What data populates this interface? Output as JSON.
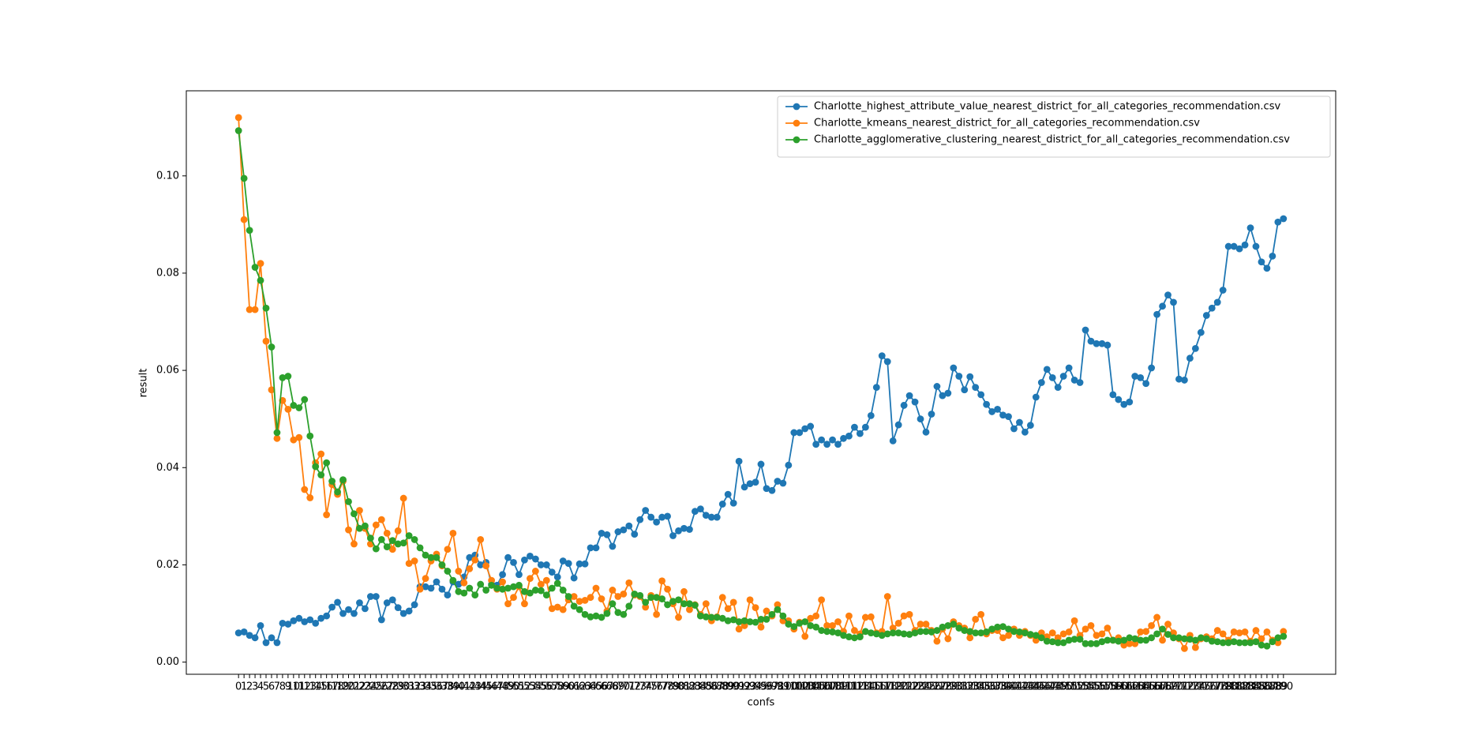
{
  "chart_data": {
    "type": "line",
    "xlabel": "confs",
    "ylabel": "result",
    "categories": [
      "0",
      "1",
      "2",
      "3",
      "4",
      "5",
      "6",
      "7",
      "8",
      "9",
      "10",
      "11",
      "12",
      "13",
      "14",
      "15",
      "16",
      "17",
      "18",
      "19",
      "20",
      "21",
      "22",
      "23",
      "24",
      "25",
      "26",
      "27",
      "28",
      "29",
      "30",
      "31",
      "32",
      "33",
      "34",
      "35",
      "36",
      "37",
      "38",
      "39",
      "40",
      "41",
      "42",
      "43",
      "44",
      "45",
      "46",
      "47",
      "48",
      "49",
      "50",
      "51",
      "52",
      "53",
      "54",
      "55",
      "56",
      "57",
      "58",
      "59",
      "60",
      "61",
      "62",
      "63",
      "64",
      "65",
      "66",
      "67",
      "68",
      "69",
      "70",
      "71",
      "72",
      "73",
      "74",
      "75",
      "76",
      "77",
      "78",
      "79",
      "80",
      "81",
      "82",
      "83",
      "84",
      "85",
      "86",
      "87",
      "88",
      "89",
      "90",
      "91",
      "92",
      "93",
      "94",
      "95",
      "96",
      "97",
      "98",
      "99",
      "100",
      "101",
      "102",
      "103",
      "104",
      "105",
      "106",
      "107",
      "108",
      "109",
      "110",
      "111",
      "112",
      "113",
      "114",
      "115",
      "116",
      "117",
      "118",
      "119",
      "120",
      "121",
      "122",
      "123",
      "124",
      "125",
      "126",
      "127",
      "128",
      "129",
      "130",
      "131",
      "132",
      "133",
      "134",
      "135",
      "136",
      "137",
      "138",
      "139",
      "140",
      "141",
      "142",
      "143",
      "144",
      "145",
      "146",
      "147",
      "148",
      "149",
      "150",
      "151",
      "152",
      "153",
      "154",
      "155",
      "156",
      "157",
      "158",
      "159",
      "160",
      "161",
      "162",
      "163",
      "164",
      "165",
      "166",
      "167",
      "168",
      "169",
      "170",
      "171",
      "172",
      "173",
      "174",
      "175",
      "176",
      "177",
      "178",
      "179",
      "180",
      "181",
      "182",
      "183",
      "184",
      "185",
      "186",
      "187",
      "188",
      "189",
      "190"
    ],
    "series": [
      {
        "name": "Charlotte_highest_attribute_value_nearest_district_for_all_categories_recommendation.csv",
        "color": "#1f77b4",
        "values": [
          0.006,
          0.0062,
          0.0055,
          0.005,
          0.0075,
          0.004,
          0.005,
          0.004,
          0.008,
          0.0078,
          0.0085,
          0.009,
          0.0083,
          0.0087,
          0.008,
          0.009,
          0.0095,
          0.0113,
          0.0123,
          0.01,
          0.0108,
          0.01,
          0.0122,
          0.011,
          0.0135,
          0.0135,
          0.0087,
          0.0122,
          0.0128,
          0.0112,
          0.01,
          0.0105,
          0.0118,
          0.0155,
          0.0155,
          0.0152,
          0.0165,
          0.015,
          0.0138,
          0.0165,
          0.016,
          0.0175,
          0.0215,
          0.022,
          0.02,
          0.0205,
          0.016,
          0.0158,
          0.018,
          0.0215,
          0.0205,
          0.018,
          0.021,
          0.0218,
          0.0212,
          0.02,
          0.02,
          0.0185,
          0.0175,
          0.0208,
          0.0203,
          0.0173,
          0.0202,
          0.0202,
          0.0235,
          0.0235,
          0.0265,
          0.0262,
          0.0238,
          0.0268,
          0.0272,
          0.028,
          0.0263,
          0.0293,
          0.0312,
          0.0298,
          0.0288,
          0.0298,
          0.03,
          0.026,
          0.027,
          0.0275,
          0.0273,
          0.031,
          0.0315,
          0.0302,
          0.0298,
          0.0298,
          0.0325,
          0.0345,
          0.0327,
          0.0413,
          0.036,
          0.0367,
          0.037,
          0.0407,
          0.0357,
          0.0353,
          0.0372,
          0.0368,
          0.0405,
          0.0472,
          0.0472,
          0.048,
          0.0485,
          0.0448,
          0.0457,
          0.0448,
          0.0457,
          0.0448,
          0.046,
          0.0465,
          0.0483,
          0.047,
          0.0483,
          0.0507,
          0.0565,
          0.063,
          0.0618,
          0.0455,
          0.0488,
          0.0528,
          0.0548,
          0.0535,
          0.05,
          0.0473,
          0.051,
          0.0567,
          0.0548,
          0.0553,
          0.0605,
          0.0588,
          0.056,
          0.0587,
          0.0565,
          0.055,
          0.053,
          0.0515,
          0.052,
          0.0508,
          0.0505,
          0.048,
          0.0493,
          0.0473,
          0.0487,
          0.0545,
          0.0575,
          0.0602,
          0.0585,
          0.0565,
          0.0588,
          0.0605,
          0.058,
          0.0575,
          0.0683,
          0.066,
          0.0655,
          0.0655,
          0.0652,
          0.055,
          0.054,
          0.053,
          0.0535,
          0.0588,
          0.0585,
          0.0573,
          0.0605,
          0.0715,
          0.0732,
          0.0755,
          0.074,
          0.0582,
          0.058,
          0.0625,
          0.0645,
          0.0678,
          0.0713,
          0.0728,
          0.074,
          0.0765,
          0.0855,
          0.0855,
          0.085,
          0.0858,
          0.0893,
          0.0855,
          0.0823,
          0.081,
          0.0835,
          0.0905,
          0.0912
        ]
      },
      {
        "name": "Charlotte_kmeans_nearest_district_for_all_categories_recommendation.csv",
        "color": "#ff7f0e",
        "values": [
          0.112,
          0.091,
          0.0725,
          0.0725,
          0.082,
          0.066,
          0.056,
          0.046,
          0.0538,
          0.052,
          0.0457,
          0.0462,
          0.0355,
          0.0338,
          0.041,
          0.0428,
          0.0303,
          0.0365,
          0.0345,
          0.0372,
          0.0272,
          0.0243,
          0.0312,
          0.0275,
          0.0243,
          0.0282,
          0.0293,
          0.0265,
          0.0232,
          0.027,
          0.0337,
          0.0203,
          0.0208,
          0.015,
          0.0172,
          0.0208,
          0.0222,
          0.0198,
          0.0232,
          0.0265,
          0.0187,
          0.0163,
          0.0192,
          0.021,
          0.0252,
          0.0198,
          0.0168,
          0.015,
          0.0165,
          0.012,
          0.0133,
          0.0155,
          0.012,
          0.0172,
          0.0187,
          0.016,
          0.0168,
          0.011,
          0.0113,
          0.0108,
          0.0128,
          0.0135,
          0.0125,
          0.0127,
          0.0133,
          0.0152,
          0.013,
          0.0105,
          0.0148,
          0.0135,
          0.014,
          0.0163,
          0.0138,
          0.0135,
          0.0113,
          0.0137,
          0.0098,
          0.0167,
          0.015,
          0.012,
          0.0092,
          0.0145,
          0.0108,
          0.0118,
          0.0098,
          0.012,
          0.0085,
          0.0093,
          0.0133,
          0.011,
          0.0123,
          0.0068,
          0.0075,
          0.0128,
          0.0112,
          0.0072,
          0.0105,
          0.0095,
          0.0118,
          0.0085,
          0.0085,
          0.0068,
          0.0082,
          0.0053,
          0.009,
          0.0095,
          0.0128,
          0.0075,
          0.0075,
          0.0083,
          0.0063,
          0.0095,
          0.0065,
          0.0058,
          0.0092,
          0.0093,
          0.006,
          0.0063,
          0.0135,
          0.007,
          0.008,
          0.0095,
          0.0098,
          0.0065,
          0.0078,
          0.0078,
          0.0065,
          0.0043,
          0.0068,
          0.0048,
          0.0083,
          0.0075,
          0.007,
          0.005,
          0.0088,
          0.0098,
          0.0058,
          0.0065,
          0.0065,
          0.005,
          0.0055,
          0.0068,
          0.0055,
          0.0063,
          0.0055,
          0.0045,
          0.006,
          0.0052,
          0.006,
          0.005,
          0.0058,
          0.0062,
          0.0085,
          0.0055,
          0.0068,
          0.0075,
          0.0055,
          0.0058,
          0.007,
          0.0045,
          0.005,
          0.0035,
          0.0038,
          0.0038,
          0.0062,
          0.0063,
          0.0075,
          0.0092,
          0.0045,
          0.0078,
          0.006,
          0.0048,
          0.0028,
          0.0055,
          0.003,
          0.0048,
          0.0052,
          0.0048,
          0.0065,
          0.0058,
          0.0045,
          0.0062,
          0.006,
          0.0062,
          0.0043,
          0.0065,
          0.0048,
          0.0062,
          0.0045,
          0.004,
          0.0063
        ]
      },
      {
        "name": "Charlotte_agglomerative_clustering_nearest_district_for_all_categories_recommendation.csv",
        "color": "#2ca02c",
        "values": [
          0.1093,
          0.0995,
          0.0888,
          0.0812,
          0.0785,
          0.0728,
          0.0648,
          0.0472,
          0.0585,
          0.0588,
          0.0528,
          0.0523,
          0.054,
          0.0465,
          0.0402,
          0.0385,
          0.041,
          0.0372,
          0.035,
          0.0375,
          0.033,
          0.0305,
          0.0275,
          0.028,
          0.0255,
          0.0233,
          0.0252,
          0.0237,
          0.025,
          0.0243,
          0.0245,
          0.026,
          0.0252,
          0.0235,
          0.022,
          0.0215,
          0.0215,
          0.02,
          0.0187,
          0.0168,
          0.0145,
          0.0142,
          0.0152,
          0.0138,
          0.016,
          0.0148,
          0.0158,
          0.0152,
          0.015,
          0.0152,
          0.0155,
          0.0158,
          0.0145,
          0.0142,
          0.0148,
          0.0147,
          0.0138,
          0.0152,
          0.0162,
          0.0148,
          0.0135,
          0.0115,
          0.0108,
          0.0098,
          0.0093,
          0.0095,
          0.0092,
          0.01,
          0.012,
          0.0102,
          0.0098,
          0.0115,
          0.014,
          0.0137,
          0.0123,
          0.0133,
          0.0133,
          0.013,
          0.0118,
          0.0125,
          0.0128,
          0.012,
          0.012,
          0.0117,
          0.0095,
          0.0093,
          0.0092,
          0.0092,
          0.009,
          0.0085,
          0.0087,
          0.0083,
          0.0085,
          0.0083,
          0.0082,
          0.0088,
          0.0088,
          0.0098,
          0.0108,
          0.0095,
          0.0078,
          0.0073,
          0.008,
          0.0083,
          0.0075,
          0.0072,
          0.0065,
          0.0063,
          0.0062,
          0.006,
          0.0055,
          0.0052,
          0.005,
          0.0052,
          0.0063,
          0.006,
          0.0058,
          0.0055,
          0.0058,
          0.006,
          0.006,
          0.0058,
          0.0057,
          0.006,
          0.0063,
          0.0063,
          0.0062,
          0.0065,
          0.0072,
          0.0075,
          0.0078,
          0.007,
          0.0065,
          0.0063,
          0.006,
          0.006,
          0.0062,
          0.0068,
          0.0072,
          0.0073,
          0.0068,
          0.0063,
          0.0062,
          0.006,
          0.0057,
          0.0055,
          0.005,
          0.0043,
          0.0042,
          0.004,
          0.004,
          0.0045,
          0.0047,
          0.0047,
          0.0038,
          0.0038,
          0.0038,
          0.0042,
          0.0045,
          0.0045,
          0.0043,
          0.0045,
          0.005,
          0.0048,
          0.0045,
          0.0045,
          0.005,
          0.0058,
          0.0068,
          0.0057,
          0.005,
          0.005,
          0.0048,
          0.0047,
          0.0045,
          0.005,
          0.0048,
          0.0043,
          0.0042,
          0.004,
          0.004,
          0.0042,
          0.004,
          0.004,
          0.004,
          0.0042,
          0.0035,
          0.0033,
          0.0042,
          0.005,
          0.0053
        ]
      }
    ],
    "ylim": [
      -0.0025,
      0.1175
    ],
    "yticks": [
      {
        "value": 0,
        "label": "0.00"
      },
      {
        "value": 0.02,
        "label": "0.02"
      },
      {
        "value": 0.04,
        "label": "0.04"
      },
      {
        "value": 0.06,
        "label": "0.06"
      },
      {
        "value": 0.08,
        "label": "0.08"
      },
      {
        "value": 0.1,
        "label": "0.10"
      }
    ],
    "grid": false,
    "legend": "upper right"
  }
}
